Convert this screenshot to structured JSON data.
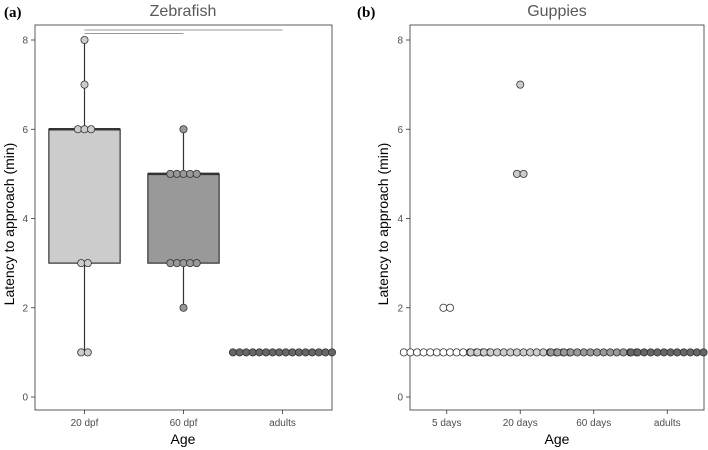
{
  "figure_labels": [
    "(a)",
    "(b)"
  ],
  "chart_data": [
    {
      "type": "box",
      "panel_label": "(a)",
      "title": "Zebrafish",
      "xlabel": "Age",
      "ylabel": "Latency to approach (min)",
      "ylim": [
        0,
        8
      ],
      "yticks": [
        0,
        2,
        4,
        6,
        8
      ],
      "categories": [
        "20 dpf",
        "60 dpf",
        "adults"
      ],
      "fills": [
        "#cccccc",
        "#999999",
        "#666666"
      ],
      "boxes": [
        {
          "q1": 3,
          "median": 6,
          "q3": 6,
          "whisker_low": 1,
          "whisker_high": 8
        },
        {
          "q1": 3,
          "median": 5,
          "q3": 5,
          "whisker_low": 2,
          "whisker_high": 6
        },
        {
          "q1": 1,
          "median": 1,
          "q3": 1,
          "whisker_low": 1,
          "whisker_high": 1
        }
      ],
      "points": [
        [
          8,
          7,
          6,
          6,
          6,
          3,
          3,
          1,
          1
        ],
        [
          6,
          5,
          5,
          5,
          5,
          5,
          3,
          3,
          3,
          3,
          3,
          2
        ],
        [
          1,
          1,
          1,
          1,
          1,
          1,
          1,
          1,
          1,
          1,
          1,
          1,
          1,
          1,
          1,
          1
        ]
      ],
      "significance_brackets": [
        [
          "20 dpf",
          "adults"
        ],
        [
          "20 dpf",
          "60 dpf"
        ]
      ]
    },
    {
      "type": "box",
      "panel_label": "(b)",
      "title": "Guppies",
      "xlabel": "Age",
      "ylabel": "Latency to approach (min)",
      "ylim": [
        0,
        8
      ],
      "yticks": [
        0,
        2,
        4,
        6,
        8
      ],
      "categories": [
        "5 days",
        "20 days",
        "60 days",
        "adults"
      ],
      "fills": [
        "#ffffff",
        "#cccccc",
        "#999999",
        "#666666"
      ],
      "boxes": [
        {
          "q1": 1,
          "median": 1,
          "q3": 1,
          "whisker_low": 1,
          "whisker_high": 1
        },
        {
          "q1": 1,
          "median": 1,
          "q3": 1,
          "whisker_low": 1,
          "whisker_high": 1
        },
        {
          "q1": 1,
          "median": 1,
          "q3": 1,
          "whisker_low": 1,
          "whisker_high": 1
        },
        {
          "q1": 1,
          "median": 1,
          "q3": 1,
          "whisker_low": 1,
          "whisker_high": 1
        }
      ],
      "points": [
        [
          2,
          2,
          1,
          1,
          1,
          1,
          1,
          1,
          1,
          1,
          1,
          1,
          1,
          1,
          1,
          1
        ],
        [
          7,
          5,
          5,
          1,
          1,
          1,
          1,
          1,
          1,
          1,
          1,
          1,
          1,
          1,
          1,
          1,
          1,
          1,
          1
        ],
        [
          1,
          1,
          1,
          1,
          1,
          1,
          1,
          1,
          1,
          1,
          1,
          1,
          1,
          1
        ],
        [
          1,
          1,
          1,
          1,
          1,
          1,
          1,
          1,
          1,
          1,
          1,
          1
        ]
      ]
    }
  ]
}
